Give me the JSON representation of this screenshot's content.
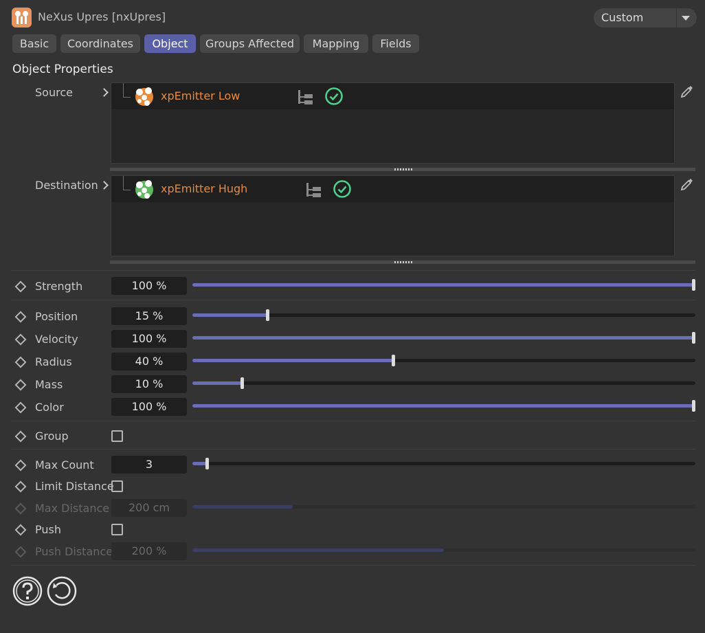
{
  "window": {
    "title": "NeXus Upres [nxUpres]",
    "app_icon": "nexus-upres-icon",
    "preset": {
      "value": "Custom"
    }
  },
  "tabs": [
    {
      "label": "Basic",
      "active": false
    },
    {
      "label": "Coordinates",
      "active": false
    },
    {
      "label": "Object",
      "active": true
    },
    {
      "label": "Groups Affected",
      "active": false
    },
    {
      "label": "Mapping",
      "active": false
    },
    {
      "label": "Fields",
      "active": false
    }
  ],
  "section": {
    "title": "Object Properties"
  },
  "links": [
    {
      "label": "Source",
      "object": "xpEmitter Low",
      "object_icon": "emitter-orange-icon",
      "status": "enabled"
    },
    {
      "label": "Destination",
      "object": "xpEmitter Hugh",
      "object_icon": "emitter-green-icon",
      "status": "enabled"
    }
  ],
  "params": {
    "strength": {
      "label": "Strength",
      "value": "100 %",
      "fraction": 1.0
    },
    "position": {
      "label": "Position",
      "value": "15 %",
      "fraction": 0.15
    },
    "velocity": {
      "label": "Velocity",
      "value": "100 %",
      "fraction": 1.0
    },
    "radius": {
      "label": "Radius",
      "value": "40 %",
      "fraction": 0.4
    },
    "mass": {
      "label": "Mass",
      "value": "10 %",
      "fraction": 0.1
    },
    "color": {
      "label": "Color",
      "value": "100 %",
      "fraction": 1.0
    },
    "group": {
      "label": "Group",
      "checked": false
    },
    "max_count": {
      "label": "Max Count",
      "value": "3",
      "fraction": 0.03
    },
    "limit_distance": {
      "label": "Limit Distance",
      "checked": false
    },
    "max_distance": {
      "label": "Max Distance",
      "value": "200 cm",
      "fraction": 0.2,
      "enabled": false
    },
    "push": {
      "label": "Push",
      "checked": false
    },
    "push_distance": {
      "label": "Push Distance",
      "value": "200 %",
      "fraction": 0.5,
      "enabled": false
    }
  },
  "footer": {
    "help_icon": "help-icon",
    "reset_icon": "reset-icon"
  },
  "colors": {
    "accent": "#5a60a8",
    "slider_fill": "#6a6fb5",
    "object_name": "#e88a3a",
    "check_green": "#4fd08a"
  }
}
